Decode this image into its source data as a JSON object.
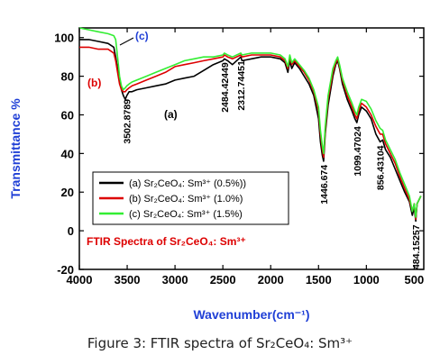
{
  "caption": "Figure 3: FTIR spectra of Sr₂CeO₄: Sm³⁺",
  "chart_data": {
    "type": "line",
    "xlabel": "Wavenumber(cm⁻¹)",
    "ylabel": "Transmittance %",
    "xlim": [
      4000,
      400
    ],
    "ylim": [
      -20,
      105
    ],
    "xticks": [
      4000,
      3500,
      3000,
      2500,
      2000,
      1500,
      1000,
      500
    ],
    "yticks": [
      -20,
      0,
      20,
      40,
      60,
      80,
      100
    ],
    "inner_title": "FTIR Spectra of Sr₂CeO₄: Sm³⁺",
    "legend_position": "middle-center",
    "series": [
      {
        "name": "(a) Sr₂CeO₄: Sm³⁺ (0.5%))",
        "short": "(a)",
        "color": "#000000",
        "x": [
          4000,
          3900,
          3800,
          3700,
          3640,
          3620,
          3600,
          3580,
          3560,
          3540,
          3520,
          3503,
          3480,
          3450,
          3400,
          3300,
          3200,
          3100,
          3000,
          2900,
          2800,
          2700,
          2600,
          2500,
          2484,
          2450,
          2400,
          2312,
          2300,
          2200,
          2100,
          2000,
          1900,
          1850,
          1820,
          1800,
          1780,
          1750,
          1700,
          1650,
          1600,
          1550,
          1500,
          1480,
          1460,
          1447,
          1430,
          1400,
          1350,
          1320,
          1300,
          1280,
          1250,
          1200,
          1150,
          1120,
          1099,
          1080,
          1050,
          1000,
          950,
          900,
          856,
          830,
          800,
          750,
          700,
          650,
          600,
          550,
          520,
          500,
          484,
          470,
          450,
          430
        ],
        "y": [
          99,
          99,
          98,
          97,
          95,
          90,
          84,
          78,
          73,
          70,
          68,
          70,
          72,
          72,
          73,
          74,
          75,
          76,
          78,
          79,
          80,
          83,
          86,
          88,
          89,
          88,
          86,
          90,
          88,
          89,
          90,
          90,
          89,
          87,
          82,
          88,
          84,
          87,
          84,
          80,
          76,
          70,
          58,
          46,
          39,
          36,
          50,
          65,
          80,
          86,
          88,
          84,
          76,
          68,
          62,
          58,
          56,
          60,
          64,
          62,
          58,
          50,
          46,
          47,
          42,
          38,
          32,
          26,
          20,
          15,
          8,
          12,
          5,
          14,
          16,
          18
        ]
      },
      {
        "name": "(b) Sr₂CeO₄: Sm³⁺ (1.0%)",
        "short": "(b)",
        "color": "#dd0000",
        "x": [
          4000,
          3900,
          3800,
          3700,
          3640,
          3620,
          3600,
          3580,
          3560,
          3540,
          3520,
          3503,
          3480,
          3450,
          3400,
          3300,
          3200,
          3100,
          3000,
          2900,
          2800,
          2700,
          2600,
          2500,
          2484,
          2450,
          2400,
          2312,
          2300,
          2200,
          2100,
          2000,
          1900,
          1850,
          1820,
          1800,
          1780,
          1750,
          1700,
          1650,
          1600,
          1550,
          1500,
          1480,
          1460,
          1447,
          1430,
          1400,
          1350,
          1320,
          1300,
          1280,
          1250,
          1200,
          1150,
          1120,
          1099,
          1080,
          1050,
          1000,
          950,
          900,
          856,
          830,
          800,
          750,
          700,
          650,
          600,
          550,
          520,
          500,
          484,
          470,
          450,
          430
        ],
        "y": [
          95,
          95,
          94,
          94,
          92,
          88,
          82,
          76,
          73,
          72,
          72,
          73,
          74,
          75,
          76,
          78,
          80,
          82,
          85,
          86,
          87,
          88,
          89,
          90,
          91,
          90,
          89,
          91,
          90,
          91,
          91,
          91,
          90,
          88,
          84,
          90,
          86,
          88,
          85,
          82,
          78,
          72,
          62,
          50,
          42,
          38,
          52,
          68,
          82,
          87,
          89,
          85,
          78,
          70,
          64,
          60,
          58,
          62,
          66,
          64,
          60,
          54,
          50,
          50,
          45,
          40,
          35,
          28,
          22,
          16,
          10,
          14,
          6,
          14,
          16,
          18
        ]
      },
      {
        "name": "(c) Sr₂CeO₄: Sm³⁺ (1.5%)",
        "short": "(c)",
        "color": "#33ee33",
        "x": [
          4000,
          3900,
          3800,
          3700,
          3640,
          3620,
          3600,
          3580,
          3560,
          3540,
          3520,
          3503,
          3480,
          3450,
          3400,
          3300,
          3200,
          3100,
          3000,
          2900,
          2800,
          2700,
          2600,
          2500,
          2484,
          2450,
          2400,
          2312,
          2300,
          2200,
          2100,
          2000,
          1900,
          1850,
          1820,
          1800,
          1780,
          1750,
          1700,
          1650,
          1600,
          1550,
          1500,
          1480,
          1460,
          1447,
          1430,
          1400,
          1350,
          1320,
          1300,
          1280,
          1250,
          1200,
          1150,
          1120,
          1099,
          1080,
          1050,
          1000,
          950,
          900,
          856,
          830,
          800,
          750,
          700,
          650,
          600,
          550,
          520,
          500,
          484,
          470,
          450,
          430
        ],
        "y": [
          105,
          104,
          103,
          102,
          101,
          99,
          90,
          80,
          75,
          73,
          74,
          75,
          76,
          77,
          78,
          80,
          82,
          84,
          86,
          88,
          89,
          90,
          90,
          91,
          92,
          91,
          90,
          92,
          91,
          92,
          92,
          92,
          91,
          89,
          85,
          91,
          87,
          89,
          86,
          83,
          79,
          73,
          64,
          52,
          44,
          40,
          54,
          70,
          84,
          88,
          90,
          86,
          79,
          72,
          66,
          62,
          60,
          64,
          68,
          67,
          63,
          57,
          53,
          52,
          47,
          42,
          37,
          30,
          24,
          18,
          10,
          14,
          7,
          14,
          16,
          18
        ]
      }
    ],
    "annotations": [
      {
        "text": "3502.8789",
        "x": 3503
      },
      {
        "text": "2484.42449",
        "x": 2484
      },
      {
        "text": "2312.74451",
        "x": 2312
      },
      {
        "text": "1446.674",
        "x": 1447
      },
      {
        "text": "1099.47024",
        "x": 1099
      },
      {
        "text": "856.43104",
        "x": 856
      },
      {
        "text": "484.15257",
        "x": 484
      }
    ]
  }
}
